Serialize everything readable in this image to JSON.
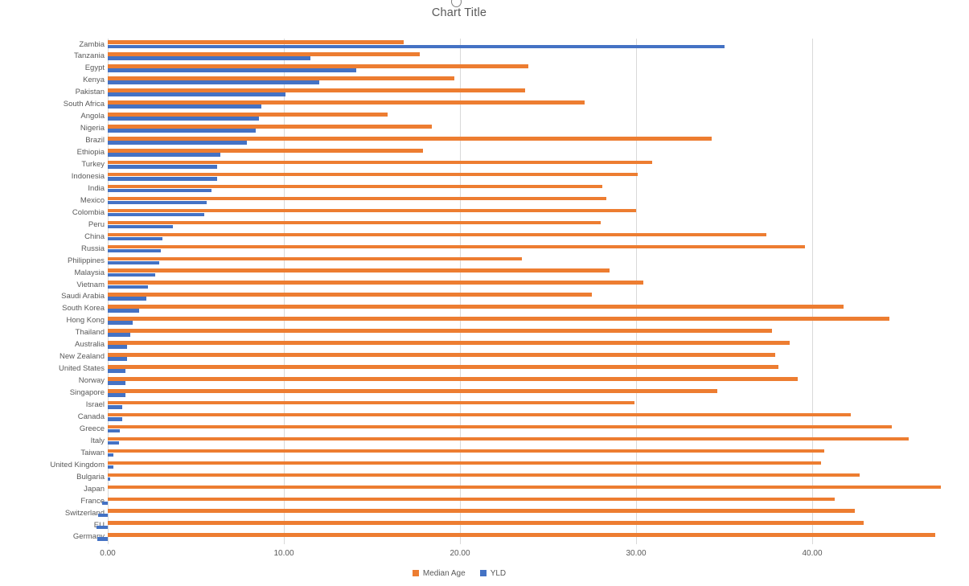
{
  "title": "Chart Title",
  "clipped_text_above_title": "g",
  "axis": {
    "tick_labels": [
      "0.00",
      "10.00",
      "20.00",
      "30.00",
      "40.00"
    ],
    "tick_values": [
      0,
      10,
      20,
      30,
      40
    ]
  },
  "legend": {
    "items": [
      {
        "label": "Median Age",
        "color": "#ED7D31"
      },
      {
        "label": "YLD",
        "color": "#4472C4"
      }
    ]
  },
  "colors": {
    "median_age": "#ED7D31",
    "yld": "#4472C4",
    "gridline": "#d9d9d9",
    "text": "#595959"
  },
  "chart_data": {
    "type": "bar",
    "orientation": "horizontal",
    "title": "Chart Title",
    "legend_position": "bottom",
    "grid": true,
    "xlim": [
      -1,
      47.6
    ],
    "xticks": [
      0,
      10,
      20,
      30,
      40
    ],
    "xtick_labels": [
      "0.00",
      "10.00",
      "20.00",
      "30.00",
      "40.00"
    ],
    "categories": [
      "Zambia",
      "Tanzania",
      "Egypt",
      "Kenya",
      "Pakistan",
      "South Africa",
      "Angola",
      "Nigeria",
      "Brazil",
      "Ethiopia",
      "Turkey",
      "Indonesia",
      "India",
      "Mexico",
      "Colombia",
      "Peru",
      "China",
      "Russia",
      "Philippines",
      "Malaysia",
      "Vietnam",
      "Saudi Arabia",
      "South Korea",
      "Hong Kong",
      "Thailand",
      "Australia",
      "New Zealand",
      "United States",
      "Norway",
      "Singapore",
      "Israel",
      "Canada",
      "Greece",
      "Italy",
      "Taiwan",
      "United Kingdom",
      "Bulgaria",
      "Japan",
      "France",
      "Switzerland",
      "EU",
      "Germany"
    ],
    "series": [
      {
        "name": "Median Age",
        "color": "#ED7D31",
        "values": [
          16.8,
          17.7,
          23.9,
          19.7,
          23.7,
          27.1,
          15.9,
          18.4,
          34.3,
          17.9,
          30.9,
          30.1,
          28.1,
          28.3,
          30.0,
          28.0,
          37.4,
          39.6,
          23.5,
          28.5,
          30.4,
          27.5,
          41.8,
          44.4,
          37.7,
          38.7,
          37.9,
          38.1,
          39.2,
          34.6,
          29.9,
          42.2,
          44.5,
          45.5,
          40.7,
          40.5,
          42.7,
          47.3,
          41.3,
          42.4,
          42.9,
          47.0
        ]
      },
      {
        "name": "YLD",
        "color": "#4472C4",
        "values": [
          35.0,
          11.5,
          14.1,
          12.0,
          10.1,
          8.7,
          8.6,
          8.4,
          7.9,
          6.4,
          6.2,
          6.2,
          5.9,
          5.6,
          5.5,
          3.7,
          3.1,
          3.0,
          2.9,
          2.7,
          2.3,
          2.2,
          1.8,
          1.4,
          1.3,
          1.1,
          1.1,
          1.0,
          1.0,
          1.0,
          0.8,
          0.8,
          0.7,
          0.65,
          0.3,
          0.3,
          0.15,
          0.0,
          -0.3,
          -0.55,
          -0.65,
          -0.6
        ]
      }
    ]
  }
}
